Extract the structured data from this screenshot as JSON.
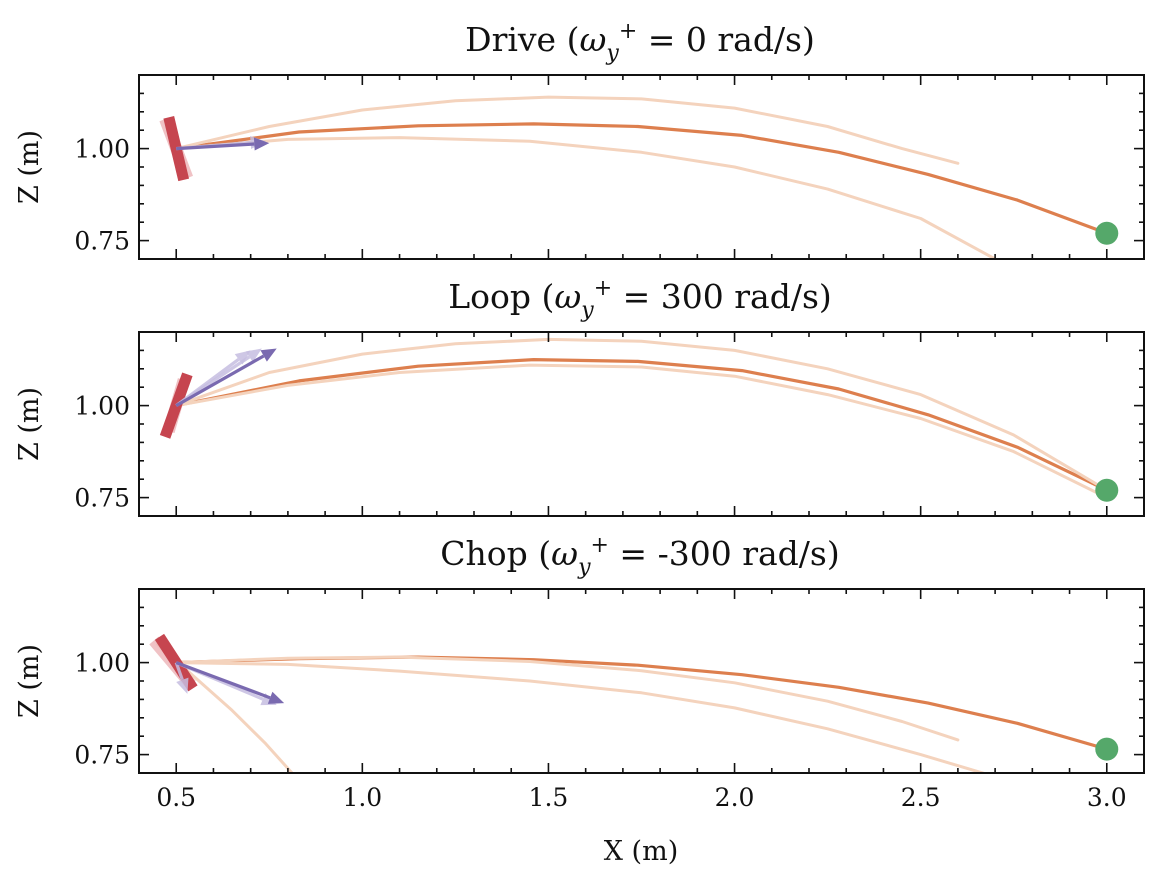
{
  "chart_data": [
    {
      "type": "line",
      "title_prefix": "Drive (",
      "omega": "ω",
      "sub": "y",
      "sup": "+",
      "title_rest": " = 0 rad/s)",
      "ylabel": "Z (m)",
      "xlabel": "",
      "xlim": [
        0.4,
        3.1
      ],
      "ylim": [
        0.7,
        1.2
      ],
      "xticks": [
        0.5,
        1.0,
        1.5,
        2.0,
        2.5,
        3.0
      ],
      "yticks": [
        0.75,
        1.0
      ],
      "yticklabels": [
        "0.75",
        "1.00"
      ],
      "show_xticklabels": false,
      "racket": {
        "x1": 0.48,
        "y1": 1.085,
        "x2": 0.52,
        "y2": 0.915
      },
      "racket_ghost": {
        "x1": 0.47,
        "y1": 1.08,
        "x2": 0.53,
        "y2": 0.92
      },
      "arrow": {
        "x1": 0.5,
        "y1": 1.0,
        "x2": 0.75,
        "y2": 1.015
      },
      "arrow_ghosts": [
        {
          "x1": 0.5,
          "y1": 1.0,
          "x2": 0.74,
          "y2": 1.02
        }
      ],
      "target": {
        "x": 3.0,
        "y": 0.77
      },
      "series": [
        {
          "name": "trajectory",
          "x": [
            0.5,
            0.83,
            1.15,
            1.46,
            1.74,
            2.02,
            2.28,
            2.52,
            2.76,
            3.0
          ],
          "y": [
            1.0,
            1.045,
            1.062,
            1.067,
            1.06,
            1.036,
            0.99,
            0.93,
            0.86,
            0.77
          ]
        },
        {
          "name": "sample-high",
          "x": [
            0.5,
            0.75,
            1.0,
            1.25,
            1.5,
            1.75,
            2.0,
            2.25,
            2.45,
            2.6
          ],
          "y": [
            1.0,
            1.06,
            1.105,
            1.13,
            1.14,
            1.135,
            1.11,
            1.06,
            1.0,
            0.96
          ]
        },
        {
          "name": "sample-low",
          "x": [
            0.5,
            0.8,
            1.1,
            1.45,
            1.75,
            2.0,
            2.25,
            2.5,
            2.7
          ],
          "y": [
            1.0,
            1.025,
            1.03,
            1.02,
            0.99,
            0.95,
            0.89,
            0.81,
            0.7
          ]
        }
      ]
    },
    {
      "type": "line",
      "title_prefix": "Loop (",
      "omega": "ω",
      "sub": "y",
      "sup": "+",
      "title_rest": " = 300 rad/s)",
      "ylabel": "Z (m)",
      "xlabel": "",
      "xlim": [
        0.4,
        3.1
      ],
      "ylim": [
        0.7,
        1.2
      ],
      "xticks": [
        0.5,
        1.0,
        1.5,
        2.0,
        2.5,
        3.0
      ],
      "yticks": [
        0.75,
        1.0
      ],
      "yticklabels": [
        "0.75",
        "1.00"
      ],
      "show_xticklabels": false,
      "racket": {
        "x1": 0.53,
        "y1": 1.085,
        "x2": 0.47,
        "y2": 0.915
      },
      "racket_ghost": {
        "x1": 0.52,
        "y1": 1.07,
        "x2": 0.48,
        "y2": 0.93
      },
      "arrow": {
        "x1": 0.5,
        "y1": 1.0,
        "x2": 0.77,
        "y2": 1.155
      },
      "arrow_ghosts": [
        {
          "x1": 0.5,
          "y1": 1.0,
          "x2": 0.7,
          "y2": 1.15
        },
        {
          "x1": 0.5,
          "y1": 1.0,
          "x2": 0.73,
          "y2": 1.155
        }
      ],
      "target": {
        "x": 3.0,
        "y": 0.77
      },
      "series": [
        {
          "name": "trajectory",
          "x": [
            0.5,
            0.83,
            1.15,
            1.46,
            1.74,
            2.02,
            2.28,
            2.52,
            2.76,
            3.0
          ],
          "y": [
            1.0,
            1.067,
            1.107,
            1.125,
            1.12,
            1.095,
            1.045,
            0.975,
            0.887,
            0.77
          ]
        },
        {
          "name": "sample-high",
          "x": [
            0.5,
            0.75,
            1.0,
            1.25,
            1.5,
            1.75,
            2.0,
            2.25,
            2.5,
            2.75,
            3.0
          ],
          "y": [
            1.0,
            1.09,
            1.14,
            1.168,
            1.18,
            1.175,
            1.15,
            1.1,
            1.03,
            0.92,
            0.77
          ]
        },
        {
          "name": "sample-low",
          "x": [
            0.5,
            0.8,
            1.1,
            1.45,
            1.75,
            2.0,
            2.25,
            2.5,
            2.75,
            3.0
          ],
          "y": [
            1.0,
            1.055,
            1.09,
            1.11,
            1.105,
            1.08,
            1.03,
            0.965,
            0.875,
            0.75
          ]
        }
      ]
    },
    {
      "type": "line",
      "title_prefix": "Chop (",
      "omega": "ω",
      "sub": "y",
      "sup": "+",
      "title_rest": " = -300 rad/s)",
      "ylabel": "Z (m)",
      "xlabel": "X (m)",
      "xlim": [
        0.4,
        3.1
      ],
      "ylim": [
        0.7,
        1.2
      ],
      "xticks": [
        0.5,
        1.0,
        1.5,
        2.0,
        2.5,
        3.0
      ],
      "xticklabels": [
        "0.5",
        "1.0",
        "1.5",
        "2.0",
        "2.5",
        "3.0"
      ],
      "yticks": [
        0.75,
        1.0
      ],
      "yticklabels": [
        "0.75",
        "1.00"
      ],
      "show_xticklabels": true,
      "racket": {
        "x1": 0.455,
        "y1": 1.07,
        "x2": 0.545,
        "y2": 0.93
      },
      "racket_ghost": {
        "x1": 0.44,
        "y1": 1.06,
        "x2": 0.54,
        "y2": 0.94
      },
      "arrow": {
        "x1": 0.5,
        "y1": 1.0,
        "x2": 0.79,
        "y2": 0.89
      },
      "arrow_ghosts": [
        {
          "x1": 0.5,
          "y1": 1.0,
          "x2": 0.53,
          "y2": 0.915
        },
        {
          "x1": 0.5,
          "y1": 1.0,
          "x2": 0.77,
          "y2": 0.885
        }
      ],
      "target": {
        "x": 3.0,
        "y": 0.765
      },
      "series": [
        {
          "name": "trajectory",
          "x": [
            0.5,
            0.83,
            1.15,
            1.46,
            1.74,
            2.02,
            2.28,
            2.52,
            2.76,
            3.0
          ],
          "y": [
            1.0,
            1.011,
            1.015,
            1.008,
            0.993,
            0.967,
            0.933,
            0.89,
            0.835,
            0.765
          ]
        },
        {
          "name": "sample-high",
          "x": [
            0.5,
            0.8,
            1.1,
            1.45,
            1.75,
            2.0,
            2.25,
            2.45,
            2.6
          ],
          "y": [
            1.0,
            1.012,
            1.015,
            1.003,
            0.978,
            0.945,
            0.895,
            0.84,
            0.79
          ]
        },
        {
          "name": "sample-low",
          "x": [
            0.5,
            0.8,
            1.1,
            1.45,
            1.75,
            2.0,
            2.25,
            2.5,
            2.7
          ],
          "y": [
            1.0,
            0.995,
            0.977,
            0.95,
            0.918,
            0.877,
            0.82,
            0.75,
            0.69
          ]
        },
        {
          "name": "sample-drop",
          "x": [
            0.45,
            0.55,
            0.65,
            0.74,
            0.82
          ],
          "y": [
            1.05,
            0.96,
            0.87,
            0.78,
            0.69
          ]
        }
      ]
    }
  ],
  "colors": {
    "trajectory": "#dd7f4e",
    "samples": "#f4d3bd",
    "racket": "#c6454f",
    "racket_ghost": "#ecb3b7",
    "arrow": "#7a6ab0",
    "arrow_ghost": "#c5bde0",
    "target": "#55a86a",
    "axes": "#111111"
  }
}
